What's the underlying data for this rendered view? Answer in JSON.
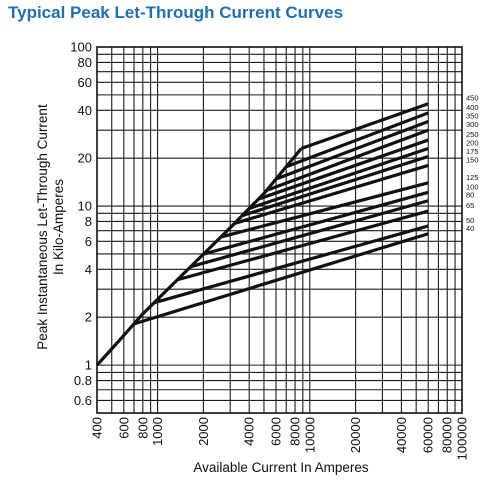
{
  "title": "Typical Peak Let-Through Current Curves",
  "chart_data": {
    "type": "line",
    "title": "Typical Peak Let-Through Current Curves",
    "xlabel": "Available Current In Amperes",
    "ylabel_lines": [
      "Peak Instantaneous Let-Through Current",
      "In Kilo-Amperes"
    ],
    "x_scale": "log",
    "y_scale": "log",
    "xlim": [
      400,
      100000
    ],
    "ylim": [
      0.5,
      100
    ],
    "grid": true,
    "x_ticks": [
      {
        "value": 400,
        "label": "400"
      },
      {
        "value": 600,
        "label": "600"
      },
      {
        "value": 800,
        "label": "800"
      },
      {
        "value": 1000,
        "label": "1000"
      },
      {
        "value": 2000,
        "label": "2000"
      },
      {
        "value": 4000,
        "label": "4000"
      },
      {
        "value": 6000,
        "label": "6000"
      },
      {
        "value": 8000,
        "label": "8000"
      },
      {
        "value": 10000,
        "label": "10000"
      },
      {
        "value": 20000,
        "label": "20000"
      },
      {
        "value": 40000,
        "label": "40000"
      },
      {
        "value": 60000,
        "label": "60000"
      },
      {
        "value": 80000,
        "label": "80000"
      },
      {
        "value": 100000,
        "label": "100000"
      }
    ],
    "y_ticks": [
      {
        "value": 0.6,
        "label": "0.6"
      },
      {
        "value": 0.8,
        "label": "0.8"
      },
      {
        "value": 1,
        "label": "1"
      },
      {
        "value": 2,
        "label": "2"
      },
      {
        "value": 4,
        "label": "4"
      },
      {
        "value": 6,
        "label": "6"
      },
      {
        "value": 8,
        "label": "8"
      },
      {
        "value": 10,
        "label": "10"
      },
      {
        "value": 20,
        "label": "20"
      },
      {
        "value": 40,
        "label": "40"
      },
      {
        "value": 60,
        "label": "60"
      },
      {
        "value": 80,
        "label": "80"
      },
      {
        "value": 100,
        "label": "100"
      }
    ],
    "envelope": {
      "x": [
        400,
        550,
        800,
        1500,
        3000,
        5000,
        8800
      ],
      "y": [
        1.0,
        1.4,
        2.1,
        3.8,
        7.3,
        12.0,
        23.0
      ]
    },
    "series": [
      {
        "name": "450",
        "start_x": 8800,
        "end_x": 60000,
        "end_y": 44
      },
      {
        "name": "400",
        "start_x": 7000,
        "end_x": 60000,
        "end_y": 38.5
      },
      {
        "name": "350",
        "start_x": 6000,
        "end_x": 60000,
        "end_y": 34
      },
      {
        "name": "300",
        "start_x": 5200,
        "end_x": 60000,
        "end_y": 30
      },
      {
        "name": "250",
        "start_x": 4600,
        "end_x": 60000,
        "end_y": 26
      },
      {
        "name": "200",
        "start_x": 4000,
        "end_x": 60000,
        "end_y": 23
      },
      {
        "name": "175",
        "start_x": 3600,
        "end_x": 60000,
        "end_y": 20.5
      },
      {
        "name": "150",
        "start_x": 3200,
        "end_x": 60000,
        "end_y": 18
      },
      {
        "name": "125",
        "start_x": 2600,
        "end_x": 60000,
        "end_y": 14
      },
      {
        "name": "100",
        "start_x": 2000,
        "end_x": 60000,
        "end_y": 12.2
      },
      {
        "name": "80",
        "start_x": 1650,
        "end_x": 60000,
        "end_y": 10.8
      },
      {
        "name": "65",
        "start_x": 1350,
        "end_x": 60000,
        "end_y": 9.3
      },
      {
        "name": "50",
        "start_x": 950,
        "end_x": 60000,
        "end_y": 7.5
      },
      {
        "name": "40",
        "start_x": 700,
        "end_x": 60000,
        "end_y": 6.7
      }
    ],
    "legend_placement": "right",
    "line_color": "#111111",
    "grid_color": "#1a1a1a"
  }
}
